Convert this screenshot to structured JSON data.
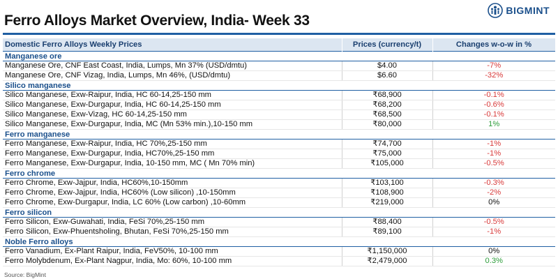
{
  "header": {
    "title": "Ferro Alloys Market Overview, India- Week 33",
    "logo_text": "BIGMINT",
    "logo_color": "#1a4f8b"
  },
  "table": {
    "columns": [
      "Domestic Ferro Alloys Weekly Prices",
      "Prices (currency/t)",
      "Changes w-o-w in %"
    ],
    "sections": [
      {
        "name": "Manganese ore",
        "rows": [
          {
            "product": "Manganese Ore, CNF East Coast, India, Lumps, Mn 37% (USD/dmtu)",
            "price": "$4.00",
            "change": "-7%",
            "trend": "neg"
          },
          {
            "product": "Manganese Ore, CNF Vizag, India, Lumps, Mn 46%, (USD/dmtu)",
            "price": "$6.60",
            "change": "-32%",
            "trend": "neg"
          }
        ]
      },
      {
        "name": "Silico manganese",
        "rows": [
          {
            "product": "Silico Manganese, Exw-Raipur, India, HC 60-14,25-150 mm",
            "price": "₹68,900",
            "change": "-0.1%",
            "trend": "neg"
          },
          {
            "product": "Silico Manganese, Exw-Durgapur, India, HC 60-14,25-150 mm",
            "price": "₹68,200",
            "change": "-0.6%",
            "trend": "neg"
          },
          {
            "product": "Silico Manganese, Exw-Vizag, HC 60-14,25-150 mm",
            "price": "₹68,500",
            "change": "-0.1%",
            "trend": "neg"
          },
          {
            "product": "Silico Manganese, Exw-Durgapur, India, MC (Mn 53% min.),10-150 mm",
            "price": "₹80,000",
            "change": "1%",
            "trend": "pos"
          }
        ]
      },
      {
        "name": "Ferro manganese",
        "rows": [
          {
            "product": "Ferro Manganese, Exw-Raipur, India, HC 70%,25-150 mm",
            "price": "₹74,700",
            "change": "-1%",
            "trend": "neg"
          },
          {
            "product": "Ferro Manganese, Exw-Durgapur, India, HC70%,25-150 mm",
            "price": "₹75,000",
            "change": "-1%",
            "trend": "neg"
          },
          {
            "product": "Ferro Manganese, Exw-Durgapur, India, 10-150 mm, MC ( Mn 70% min)",
            "price": "₹105,000",
            "change": "-0.5%",
            "trend": "neg"
          }
        ]
      },
      {
        "name": "Ferro chrome",
        "rows": [
          {
            "product": "Ferro Chrome, Exw-Jajpur, India, HC60%,10-150mm",
            "price": "₹103,100",
            "change": "-0.3%",
            "trend": "neg"
          },
          {
            "product": "Ferro Chrome, Exw-Jajpur, India, HC60% (Low silicon) ,10-150mm",
            "price": "₹108,900",
            "change": "-2%",
            "trend": "neg"
          },
          {
            "product": "Ferro Chrome, Exw-Durgapur, India, LC 60% (Low carbon) ,10-60mm",
            "price": "₹219,000",
            "change": "0%",
            "trend": "zero"
          }
        ]
      },
      {
        "name": "Ferro silicon",
        "rows": [
          {
            "product": "Ferro Silicon, Exw-Guwahati, India, FeSi 70%,25-150 mm",
            "price": "₹88,400",
            "change": "-0.5%",
            "trend": "neg"
          },
          {
            "product": "Ferro Silicon, Exw-Phuentsholing, Bhutan, FeSi 70%,25-150 mm",
            "price": "₹89,100",
            "change": "-1%",
            "trend": "neg"
          }
        ]
      },
      {
        "name": "Noble Ferro alloys",
        "rows": [
          {
            "product": "Ferro Vanadium, Ex-Plant Raipur, India, FeV50%, 10-100 mm",
            "price": "₹1,150,000",
            "change": "0%",
            "trend": "zero"
          },
          {
            "product": "Ferro Molybdenum, Ex-Plant Nagpur, India, Mo: 60%, 10-100 mm",
            "price": "₹2,479,000",
            "change": "0.3%",
            "trend": "pos"
          }
        ]
      }
    ]
  },
  "footer": {
    "source": "Source: BigMint"
  },
  "colors": {
    "negative": "#d83a3a",
    "positive": "#2d9d3a",
    "section_text": "#1a4f8b",
    "header_bg": "#dce6f1"
  }
}
